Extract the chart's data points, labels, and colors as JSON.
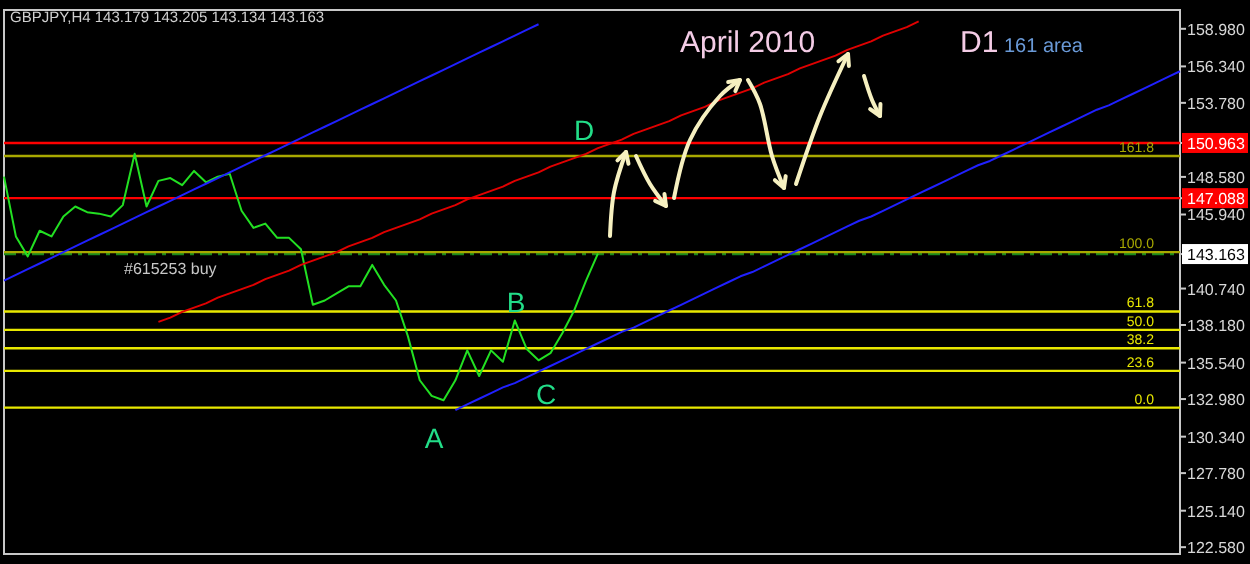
{
  "chart_data": {
    "type": "line",
    "title": "GBPJPY,H4  143.179 143.205 143.134 143.163",
    "annotations": [
      "April 2010",
      "D1",
      "161 area",
      "A",
      "B",
      "C",
      "D",
      {
        "text": "161.8",
        "y": 150.05
      },
      {
        "text": "100.0",
        "y": 143.3
      },
      {
        "text": "61.8",
        "y": 139.13
      },
      {
        "text": "50.0",
        "y": 137.84
      },
      {
        "text": "38.2",
        "y": 136.55
      },
      {
        "text": "23.6",
        "y": 134.96
      },
      {
        "text": "0.0",
        "y": 132.38
      }
    ],
    "categories": [
      null,
      null,
      null,
      null,
      null,
      null,
      null,
      null,
      null,
      null,
      null,
      null,
      null,
      null,
      null,
      null,
      null,
      null,
      null,
      null,
      null,
      null,
      null,
      null,
      null,
      null,
      null,
      null,
      null,
      null,
      null,
      null,
      null,
      null,
      null,
      null,
      null,
      null,
      null,
      null,
      null,
      null,
      null,
      null,
      null,
      null,
      null,
      null,
      null,
      null,
      null,
      null,
      null,
      null,
      null,
      null,
      null,
      null,
      null,
      null,
      null,
      null,
      null,
      null,
      null,
      null,
      null,
      null,
      null,
      null,
      null,
      null,
      null,
      null,
      null,
      null,
      null,
      null,
      null,
      null,
      null,
      null,
      null,
      null,
      null,
      null,
      null,
      null,
      null,
      null,
      null,
      null,
      null,
      null,
      null,
      null,
      null,
      null,
      null,
      null
    ],
    "ylim": [
      122.1,
      160.3
    ],
    "yticks": [
      {
        "value": 158.98,
        "label": "158.980"
      },
      {
        "value": 156.34,
        "label": "156.340"
      },
      {
        "value": 153.78,
        "label": "153.780"
      },
      {
        "value": 150.963,
        "label": "150.963"
      },
      {
        "value": 148.58,
        "label": "148.580"
      },
      {
        "value": 147.088,
        "label": "147.088"
      },
      {
        "value": 145.94,
        "label": "145.940"
      },
      {
        "value": 143.163,
        "label": "143.163"
      },
      {
        "value": 140.74,
        "label": "140.740"
      },
      {
        "value": 138.18,
        "label": "138.180"
      },
      {
        "value": 135.54,
        "label": "135.540"
      },
      {
        "value": 132.98,
        "label": "132.980"
      },
      {
        "value": 130.34,
        "label": "130.340"
      },
      {
        "value": 127.78,
        "label": "127.780"
      },
      {
        "value": 125.14,
        "label": "125.140"
      },
      {
        "value": 122.58,
        "label": "122.580"
      }
    ],
    "tick_labels": "y",
    "grid": false,
    "series": [
      {
        "color": "#22e022",
        "values": [
          148.6,
          144.4,
          143.0,
          144.8,
          144.4,
          145.8,
          146.5,
          146.1,
          146.0,
          145.8,
          146.6,
          150.2,
          146.5,
          148.3,
          148.5,
          148.0,
          149.0,
          148.2,
          148.6,
          148.8,
          146.2,
          145.0,
          145.3,
          144.3,
          144.3,
          143.5,
          139.6,
          139.9,
          140.4,
          140.9,
          140.9,
          142.4,
          141.0,
          139.9,
          137.4,
          134.3,
          133.2,
          132.9,
          134.3,
          136.4,
          134.6,
          136.4,
          135.6,
          138.5,
          136.5,
          135.7,
          136.2,
          137.6,
          139.2,
          141.3,
          143.2,
          null,
          null,
          null,
          null,
          null,
          null,
          null,
          null,
          null,
          null,
          null,
          null,
          null,
          null,
          null,
          null,
          null,
          null,
          null,
          null,
          null,
          null,
          null,
          null,
          null,
          null,
          null,
          null,
          null,
          null,
          null,
          null,
          null,
          null,
          null,
          null,
          null,
          null,
          null,
          null,
          null,
          null,
          null,
          null,
          null,
          null,
          null,
          null,
          null
        ]
      },
      {
        "type": "line",
        "color": "#2020ff",
        "values": [
          141.3,
          141.7,
          142.1,
          142.5,
          142.9,
          143.3,
          143.7,
          144.1,
          144.5,
          144.9,
          145.3,
          145.7,
          146.1,
          146.5,
          146.9,
          147.3,
          147.7,
          148.1,
          148.5,
          148.9,
          149.3,
          149.7,
          150.1,
          150.5,
          150.9,
          151.3,
          151.7,
          152.1,
          152.5,
          152.9,
          153.3,
          153.7,
          154.1,
          154.5,
          154.9,
          155.3,
          155.7,
          156.1,
          156.5,
          156.9,
          157.3,
          157.7,
          158.1,
          158.5,
          158.9,
          159.3,
          null,
          null,
          null,
          null,
          null,
          null,
          null,
          null,
          null,
          null,
          null,
          null,
          null,
          null,
          null,
          null,
          null,
          null,
          null,
          null,
          null,
          null,
          null,
          null,
          null,
          null,
          null,
          null,
          null,
          null,
          null,
          null,
          null,
          null,
          null,
          null,
          null,
          null,
          null,
          null,
          null,
          null,
          null,
          null,
          null,
          null,
          null,
          null,
          null,
          null,
          null,
          null,
          null,
          null
        ]
      },
      {
        "type": "line",
        "color": "#2020ff",
        "values": [
          null,
          null,
          null,
          null,
          null,
          null,
          null,
          null,
          null,
          null,
          null,
          null,
          null,
          null,
          null,
          null,
          null,
          null,
          null,
          null,
          null,
          null,
          null,
          null,
          null,
          null,
          null,
          null,
          null,
          null,
          null,
          null,
          null,
          null,
          null,
          null,
          null,
          null,
          132.2,
          132.6,
          133.0,
          133.4,
          133.8,
          134.1,
          134.5,
          134.9,
          135.3,
          135.7,
          136.1,
          136.5,
          136.9,
          137.3,
          137.7,
          138.0,
          138.4,
          138.8,
          139.2,
          139.6,
          140.0,
          140.4,
          140.8,
          141.2,
          141.6,
          141.9,
          142.3,
          142.7,
          143.1,
          143.5,
          143.9,
          144.3,
          144.7,
          145.1,
          145.5,
          145.8,
          146.2,
          146.6,
          147.0,
          147.4,
          147.8,
          148.2,
          148.6,
          149.0,
          149.4,
          149.7,
          150.1,
          150.5,
          150.9,
          151.3,
          151.7,
          152.1,
          152.5,
          152.9,
          153.3,
          153.6,
          154.0,
          154.4,
          154.8,
          155.2,
          155.6,
          156.0
        ]
      },
      {
        "type": "line",
        "color": "#e00000",
        "values": [
          null,
          null,
          null,
          null,
          null,
          null,
          null,
          null,
          null,
          null,
          null,
          null,
          null,
          138.4,
          138.7,
          139.1,
          139.4,
          139.7,
          140.1,
          140.4,
          140.7,
          141.0,
          141.4,
          141.7,
          142.0,
          142.4,
          142.7,
          143.0,
          143.3,
          143.7,
          144.0,
          144.3,
          144.7,
          145.0,
          145.3,
          145.6,
          146.0,
          146.3,
          146.6,
          147.0,
          147.3,
          147.6,
          147.9,
          148.3,
          148.6,
          148.9,
          149.3,
          149.6,
          149.9,
          150.2,
          150.6,
          150.9,
          151.2,
          151.6,
          151.9,
          152.2,
          152.5,
          152.9,
          153.2,
          153.5,
          153.9,
          154.2,
          154.5,
          154.8,
          155.2,
          155.5,
          155.8,
          156.2,
          156.5,
          156.8,
          157.1,
          157.5,
          157.8,
          158.1,
          158.5,
          158.8,
          159.1,
          159.5,
          null,
          null,
          null,
          null,
          null,
          null,
          null,
          null,
          null,
          null,
          null,
          null,
          null,
          null,
          null,
          null,
          null,
          null,
          null,
          null,
          null,
          null
        ]
      }
    ],
    "ref_lines": [
      {
        "axis": "y",
        "value": 150.963,
        "color": "#ff0000"
      },
      {
        "axis": "y",
        "value": 147.088,
        "color": "#ff0000"
      },
      {
        "axis": "y",
        "value": 143.163,
        "color": "#1a8a1a",
        "line_style": "dashed",
        "label": "#615253 buy"
      },
      {
        "axis": "y",
        "value": 150.05,
        "color": "#a8a800"
      },
      {
        "axis": "y",
        "value": 143.3,
        "color": "#a8a800"
      },
      {
        "axis": "y",
        "value": 139.13,
        "color": "#e8e800"
      },
      {
        "axis": "y",
        "value": 137.84,
        "color": "#e8e800"
      },
      {
        "axis": "y",
        "value": 136.55,
        "color": "#e8e800"
      },
      {
        "axis": "y",
        "value": 134.96,
        "color": "#e8e800"
      },
      {
        "axis": "y",
        "value": 132.38,
        "color": "#e8e800"
      }
    ]
  }
}
